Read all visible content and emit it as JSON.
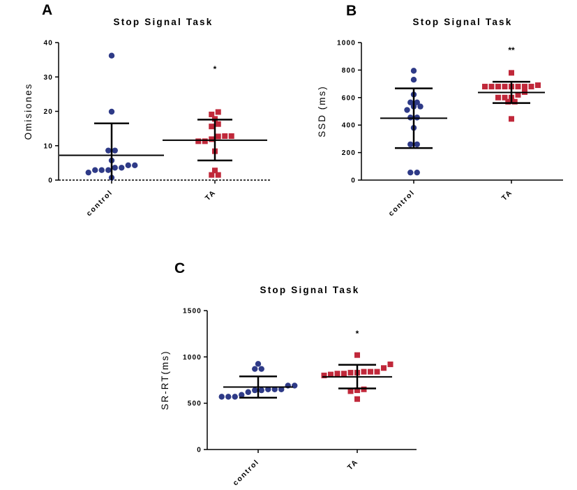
{
  "chart_data": [
    {
      "panel": "A",
      "type": "scatter",
      "title": "Stop Signal Task",
      "ylabel": "Omisiones",
      "xlabel": "",
      "ylim": [
        0,
        40
      ],
      "yticks": [
        0,
        10,
        20,
        30,
        40
      ],
      "categories": [
        "control",
        "TA"
      ],
      "baseline_dashed": true,
      "series": [
        {
          "category": "control",
          "marker": "circle",
          "color": "#2e3a87",
          "mean": 7.2,
          "sd_upper": 16.5,
          "sd_lower": 0,
          "values": [
            36.2,
            19.9,
            8.6,
            8.6,
            5.7,
            4.3,
            4.3,
            3.6,
            3.6,
            2.9,
            2.9,
            2.9,
            2.2,
            0.7
          ]
        },
        {
          "category": "TA",
          "marker": "square",
          "color": "#c0283a",
          "mean": 11.6,
          "sd_upper": 17.6,
          "sd_lower": 5.7,
          "significance": "*",
          "values": [
            19.8,
            19.1,
            17.8,
            16.3,
            15.6,
            12.8,
            12.8,
            12.7,
            11.9,
            11.3,
            11.3,
            8.4,
            2.8,
            1.5,
            1.5
          ]
        }
      ]
    },
    {
      "panel": "B",
      "type": "scatter",
      "title": "Stop Signal Task",
      "ylabel": "SSD (ms)",
      "xlabel": "",
      "ylim": [
        0,
        1000
      ],
      "yticks": [
        0,
        200,
        400,
        600,
        800,
        1000
      ],
      "categories": [
        "control",
        "TA"
      ],
      "series": [
        {
          "category": "control",
          "marker": "circle",
          "color": "#2e3a87",
          "mean": 450,
          "sd_upper": 667,
          "sd_lower": 233,
          "values": [
            795,
            730,
            622,
            565,
            565,
            535,
            535,
            510,
            455,
            455,
            380,
            260,
            260,
            55,
            55
          ]
        },
        {
          "category": "TA",
          "marker": "square",
          "color": "#c0283a",
          "mean": 637,
          "sd_upper": 715,
          "sd_lower": 560,
          "significance": "**",
          "values": [
            780,
            690,
            680,
            680,
            680,
            680,
            680,
            680,
            680,
            680,
            640,
            620,
            600,
            600,
            600,
            570,
            570,
            445
          ]
        }
      ]
    },
    {
      "panel": "C",
      "type": "scatter",
      "title": "Stop Signal Task",
      "ylabel": "SR-RT(ms)",
      "xlabel": "",
      "ylim": [
        0,
        1500
      ],
      "yticks": [
        0,
        500,
        1000,
        1500
      ],
      "categories": [
        "control",
        "TA"
      ],
      "series": [
        {
          "category": "control",
          "marker": "circle",
          "color": "#2e3a87",
          "mean": 675,
          "sd_upper": 790,
          "sd_lower": 560,
          "values": [
            925,
            870,
            870,
            690,
            690,
            650,
            650,
            650,
            640,
            640,
            620,
            590,
            570,
            570,
            570
          ]
        },
        {
          "category": "TA",
          "marker": "square",
          "color": "#c0283a",
          "mean": 785,
          "sd_upper": 915,
          "sd_lower": 660,
          "significance": "*",
          "values": [
            1020,
            920,
            880,
            840,
            840,
            840,
            830,
            830,
            820,
            820,
            810,
            800,
            650,
            630,
            640,
            545
          ]
        }
      ]
    }
  ]
}
